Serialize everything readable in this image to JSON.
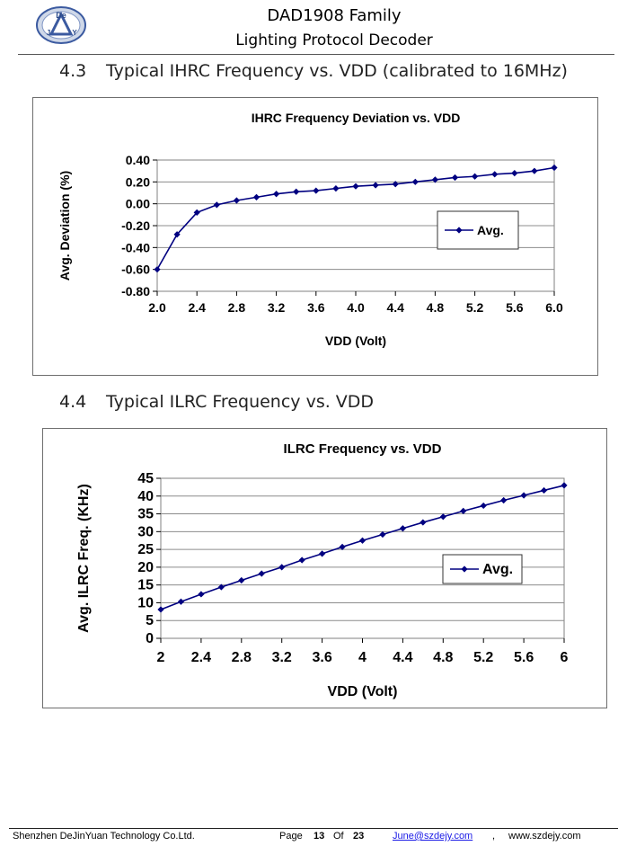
{
  "header": {
    "logo_text_top": "De",
    "logo_text_left": "J",
    "logo_text_right": "Y",
    "title": "DAD1908 Family",
    "subtitle": "Lighting Protocol Decoder"
  },
  "sections": [
    {
      "number": "4.3",
      "title": "Typical IHRC Frequency vs. VDD (calibrated to 16MHz)"
    },
    {
      "number": "4.4",
      "title": "Typical ILRC Frequency vs. VDD"
    }
  ],
  "chart_data": [
    {
      "type": "line",
      "title": "IHRC Frequency Deviation vs. VDD",
      "xlabel": "VDD (Volt)",
      "ylabel": "Avg. Deviation (%)",
      "xlim": [
        2.0,
        6.0
      ],
      "ylim": [
        -0.8,
        0.4
      ],
      "x_ticks": [
        "2.0",
        "2.4",
        "2.8",
        "3.2",
        "3.6",
        "4.0",
        "4.4",
        "4.8",
        "5.2",
        "5.6",
        "6.0"
      ],
      "y_ticks": [
        "0.40",
        "0.20",
        "0.00",
        "-0.20",
        "-0.40",
        "-0.60",
        "-0.80"
      ],
      "grid": true,
      "legend_position": "right",
      "series": [
        {
          "name": "Avg.",
          "color": "#000080",
          "x": [
            2.0,
            2.2,
            2.4,
            2.6,
            2.8,
            3.0,
            3.2,
            3.4,
            3.6,
            3.8,
            4.0,
            4.2,
            4.4,
            4.6,
            4.8,
            5.0,
            5.2,
            5.4,
            5.6,
            5.8,
            6.0
          ],
          "y": [
            -0.6,
            -0.28,
            -0.08,
            -0.01,
            0.03,
            0.06,
            0.09,
            0.11,
            0.12,
            0.14,
            0.16,
            0.17,
            0.18,
            0.2,
            0.22,
            0.24,
            0.25,
            0.27,
            0.28,
            0.3,
            0.33
          ]
        }
      ]
    },
    {
      "type": "line",
      "title": "ILRC Frequency vs. VDD",
      "xlabel": "VDD (Volt)",
      "ylabel": "Avg. ILRC Freq. (KHz)",
      "xlim": [
        2,
        6
      ],
      "ylim": [
        0,
        45
      ],
      "x_ticks": [
        "2",
        "2.4",
        "2.8",
        "3.2",
        "3.6",
        "4",
        "4.4",
        "4.8",
        "5.2",
        "5.6",
        "6"
      ],
      "y_ticks": [
        "45",
        "40",
        "35",
        "30",
        "25",
        "20",
        "15",
        "10",
        "5",
        "0"
      ],
      "grid": true,
      "legend_position": "right",
      "series": [
        {
          "name": "Avg.",
          "color": "#000080",
          "x": [
            2.0,
            2.2,
            2.4,
            2.6,
            2.8,
            3.0,
            3.2,
            3.4,
            3.6,
            3.8,
            4.0,
            4.2,
            4.4,
            4.6,
            4.8,
            5.0,
            5.2,
            5.4,
            5.6,
            5.8,
            6.0
          ],
          "y": [
            8.1,
            10.3,
            12.4,
            14.4,
            16.3,
            18.2,
            20.0,
            22.0,
            23.8,
            25.7,
            27.5,
            29.2,
            30.9,
            32.6,
            34.2,
            35.8,
            37.3,
            38.8,
            40.2,
            41.6,
            43.0
          ]
        }
      ]
    }
  ],
  "footer": {
    "company": "Shenzhen DeJinYuan Technology Co.Ltd.",
    "page_label": "Page",
    "page_number": "13",
    "of_label": "Of",
    "page_total": "23",
    "email": "June@szdejy.com",
    "separator": ",",
    "website": "www.szdejy.com"
  }
}
